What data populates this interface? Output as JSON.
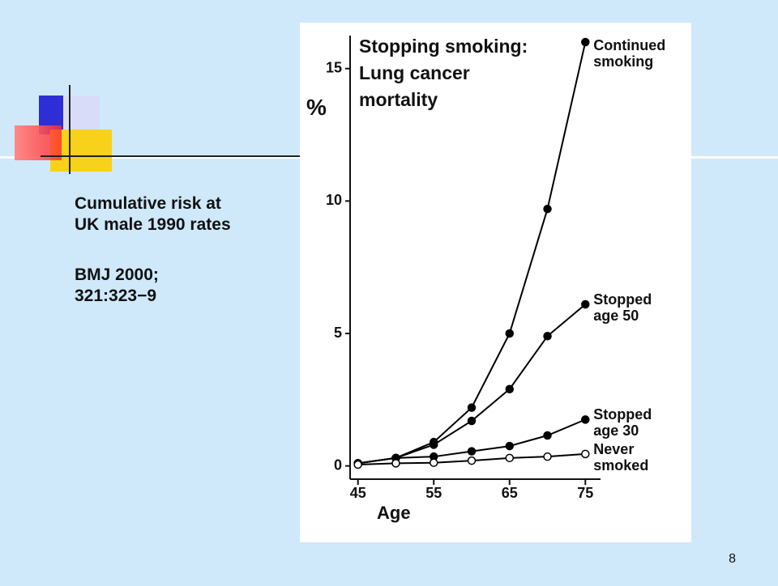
{
  "slide": {
    "caption": "Cumulative risk at\nUK male 1990 rates",
    "source": "BMJ 2000;\n321:323−9",
    "page_number": "8"
  },
  "chart_data": {
    "type": "line",
    "title": "Stopping smoking:\nLung cancer\nmortality",
    "x_label": "Age",
    "y_label": "%",
    "x": [
      45,
      50,
      55,
      60,
      65,
      70,
      75
    ],
    "xlim": [
      43,
      77
    ],
    "xticks": [
      45,
      55,
      65,
      75
    ],
    "ylim": [
      -0.5,
      16
    ],
    "yticks": [
      0,
      5,
      10,
      15
    ],
    "series": [
      {
        "name": "Continued\nsmoking",
        "color": "#000000",
        "marker_fill": "#000000",
        "values": [
          0.1,
          0.3,
          0.9,
          2.2,
          5.0,
          9.7,
          16.0
        ]
      },
      {
        "name": "Stopped\nage 50",
        "color": "#000000",
        "marker_fill": "#000000",
        "values": [
          0.1,
          0.3,
          0.8,
          1.7,
          2.9,
          4.9,
          6.1
        ]
      },
      {
        "name": "Stopped\nage 30",
        "color": "#000000",
        "marker_fill": "#000000",
        "values": [
          0.1,
          0.3,
          0.35,
          0.55,
          0.75,
          1.15,
          1.75
        ]
      },
      {
        "name": "Never\nsmoked",
        "color": "#000000",
        "marker_fill": "#ffffff",
        "values": [
          0.05,
          0.1,
          0.12,
          0.2,
          0.3,
          0.35,
          0.45
        ]
      }
    ]
  }
}
